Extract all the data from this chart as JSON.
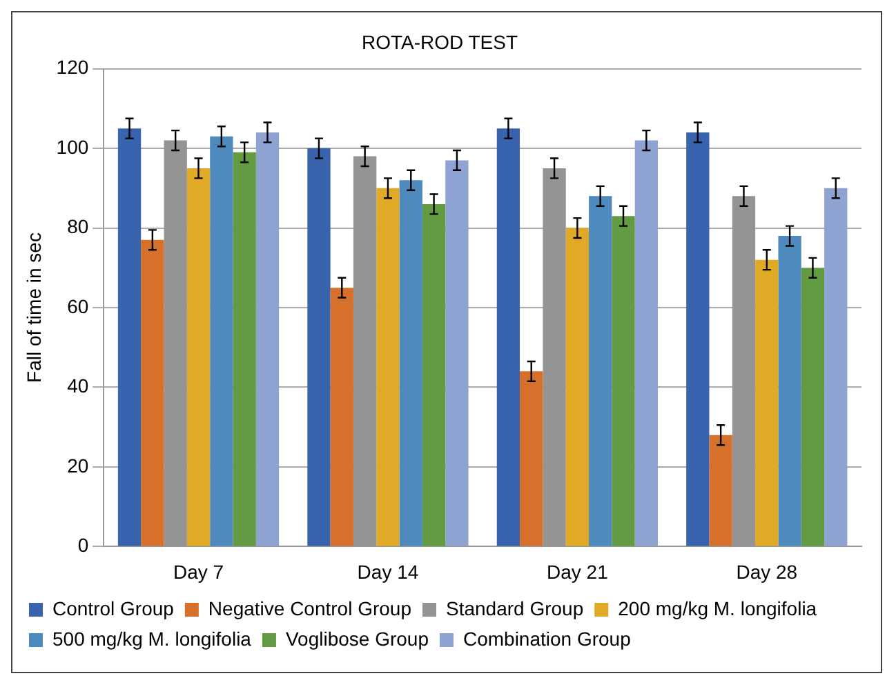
{
  "chart_data": {
    "type": "bar",
    "title": "ROTA-ROD TEST",
    "ylabel": "Fall of time in sec",
    "categories": [
      "Day 7",
      "Day 14",
      "Day 21",
      "Day 28"
    ],
    "ylim": [
      0,
      120
    ],
    "yticks": [
      0,
      20,
      40,
      60,
      80,
      100,
      120
    ],
    "grid": "y",
    "legend": "bottom",
    "series": [
      {
        "name": "Control Group",
        "color": "#3a63ae",
        "values": [
          105,
          100,
          105,
          104
        ],
        "errors": [
          2.5,
          2.5,
          2.5,
          2.5
        ]
      },
      {
        "name": "Negative Control Group",
        "color": "#d6702b",
        "values": [
          77,
          65,
          44,
          28
        ],
        "errors": [
          2.5,
          2.5,
          2.5,
          2.5
        ]
      },
      {
        "name": "Standard Group",
        "color": "#949494",
        "values": [
          102,
          98,
          95,
          88
        ],
        "errors": [
          2.5,
          2.5,
          2.5,
          2.5
        ]
      },
      {
        "name": "200 mg/kg M. longifolia",
        "color": "#e0a926",
        "values": [
          95,
          90,
          80,
          72
        ],
        "errors": [
          2.5,
          2.5,
          2.5,
          2.5
        ]
      },
      {
        "name": "500 mg/kg M. longifolia",
        "color": "#4e8abd",
        "values": [
          103,
          92,
          88,
          78
        ],
        "errors": [
          2.5,
          2.5,
          2.5,
          2.5
        ]
      },
      {
        "name": "Voglibose Group",
        "color": "#629b41",
        "values": [
          99,
          86,
          83,
          70
        ],
        "errors": [
          2.5,
          2.5,
          2.5,
          2.5
        ]
      },
      {
        "name": "Combination Group",
        "color": "#8fa3d3",
        "values": [
          104,
          97,
          102,
          90
        ],
        "errors": [
          2.5,
          2.5,
          2.5,
          2.5
        ]
      }
    ]
  }
}
